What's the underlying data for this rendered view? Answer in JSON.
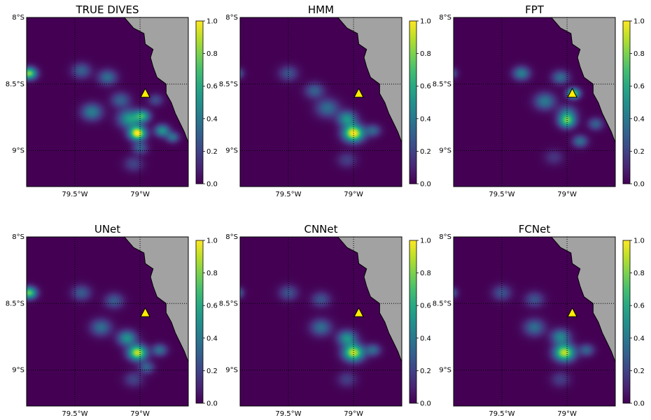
{
  "figure": {
    "panels": [
      {
        "title": "TRUE DIVES",
        "hotspots": [
          [
            -79.37,
            8.71,
            0.42,
            0.055
          ],
          [
            -79.08,
            8.76,
            0.55,
            0.06
          ],
          [
            -79.02,
            8.87,
            1.0,
            0.045
          ],
          [
            -78.98,
            8.74,
            0.55,
            0.04
          ],
          [
            -78.83,
            8.85,
            0.5,
            0.04
          ],
          [
            -78.75,
            8.9,
            0.35,
            0.035
          ],
          [
            -79.0,
            8.98,
            0.3,
            0.04
          ],
          [
            -79.85,
            8.42,
            0.8,
            0.04
          ],
          [
            -79.45,
            8.4,
            0.3,
            0.05
          ],
          [
            -79.25,
            8.45,
            0.35,
            0.05
          ],
          [
            -79.15,
            8.62,
            0.3,
            0.05
          ],
          [
            -78.88,
            8.62,
            0.22,
            0.04
          ],
          [
            -79.05,
            9.1,
            0.2,
            0.05
          ]
        ]
      },
      {
        "title": "HMM",
        "hotspots": [
          [
            -79.0,
            8.87,
            1.0,
            0.055
          ],
          [
            -79.05,
            8.76,
            0.5,
            0.05
          ],
          [
            -79.2,
            8.68,
            0.35,
            0.06
          ],
          [
            -79.3,
            8.55,
            0.3,
            0.05
          ],
          [
            -78.85,
            8.85,
            0.3,
            0.04
          ],
          [
            -79.9,
            8.42,
            0.4,
            0.035
          ],
          [
            -79.5,
            8.42,
            0.25,
            0.05
          ],
          [
            -79.05,
            9.07,
            0.18,
            0.05
          ]
        ]
      },
      {
        "title": "FPT",
        "hotspots": [
          [
            -79.0,
            8.78,
            0.65,
            0.045
          ],
          [
            -79.17,
            8.63,
            0.4,
            0.055
          ],
          [
            -79.35,
            8.42,
            0.42,
            0.045
          ],
          [
            -79.05,
            8.45,
            0.35,
            0.045
          ],
          [
            -78.95,
            8.57,
            0.7,
            0.035
          ],
          [
            -78.9,
            8.93,
            0.35,
            0.04
          ],
          [
            -79.0,
            8.72,
            0.35,
            0.05
          ],
          [
            -78.78,
            8.8,
            0.3,
            0.04
          ],
          [
            -79.9,
            8.42,
            0.4,
            0.035
          ],
          [
            -79.1,
            9.05,
            0.15,
            0.05
          ]
        ]
      },
      {
        "title": "UNet",
        "hotspots": [
          [
            -79.02,
            8.87,
            0.9,
            0.05
          ],
          [
            -79.1,
            8.76,
            0.5,
            0.05
          ],
          [
            -79.3,
            8.68,
            0.35,
            0.055
          ],
          [
            -78.85,
            8.85,
            0.35,
            0.04
          ],
          [
            -79.85,
            8.42,
            0.75,
            0.04
          ],
          [
            -79.45,
            8.42,
            0.28,
            0.05
          ],
          [
            -79.2,
            8.48,
            0.28,
            0.05
          ],
          [
            -79.05,
            9.07,
            0.2,
            0.05
          ],
          [
            -78.95,
            8.98,
            0.3,
            0.04
          ]
        ]
      },
      {
        "title": "CNNet",
        "hotspots": [
          [
            -79.0,
            8.87,
            0.9,
            0.055
          ],
          [
            -79.05,
            8.76,
            0.5,
            0.05
          ],
          [
            -79.25,
            8.68,
            0.35,
            0.055
          ],
          [
            -78.85,
            8.85,
            0.32,
            0.04
          ],
          [
            -79.9,
            8.42,
            0.45,
            0.035
          ],
          [
            -79.5,
            8.42,
            0.25,
            0.05
          ],
          [
            -79.25,
            8.47,
            0.25,
            0.05
          ],
          [
            -79.05,
            9.07,
            0.18,
            0.05
          ]
        ]
      },
      {
        "title": "FCNet",
        "hotspots": [
          [
            -79.02,
            8.87,
            0.9,
            0.055
          ],
          [
            -79.05,
            8.75,
            0.45,
            0.05
          ],
          [
            -79.25,
            8.68,
            0.35,
            0.055
          ],
          [
            -78.85,
            8.85,
            0.3,
            0.04
          ],
          [
            -79.9,
            8.42,
            0.45,
            0.035
          ],
          [
            -79.5,
            8.42,
            0.25,
            0.05
          ],
          [
            -79.25,
            8.47,
            0.25,
            0.05
          ],
          [
            -79.05,
            9.07,
            0.18,
            0.05
          ]
        ]
      }
    ],
    "map": {
      "lon_range": [
        -79.87,
        -78.63
      ],
      "lat_range": [
        8.0,
        9.27
      ],
      "gridlines": {
        "lon": [
          -79.5,
          -79.0
        ],
        "lat": [
          8.0,
          8.5,
          9.0
        ]
      },
      "lat_tick_labels": [
        "8°S",
        "8.5°S",
        "9°S"
      ],
      "lat_tick_values": [
        8.0,
        8.5,
        9.0
      ],
      "lon_tick_labels": [
        "79.5°W",
        "79°W"
      ],
      "lon_tick_values": [
        -79.5,
        -79.0
      ],
      "coastline": [
        [
          -79.12,
          8.0
        ],
        [
          -79.05,
          8.08
        ],
        [
          -78.97,
          8.12
        ],
        [
          -78.96,
          8.2
        ],
        [
          -78.9,
          8.24
        ],
        [
          -78.92,
          8.3
        ],
        [
          -78.9,
          8.37
        ],
        [
          -78.87,
          8.45
        ],
        [
          -78.8,
          8.5
        ],
        [
          -78.8,
          8.57
        ],
        [
          -78.76,
          8.64
        ],
        [
          -78.73,
          8.72
        ],
        [
          -78.69,
          8.8
        ],
        [
          -78.66,
          8.86
        ],
        [
          -78.63,
          8.94
        ]
      ],
      "land_color": "#a2a2a2",
      "colormap": "viridis",
      "marker": {
        "lon": -78.96,
        "lat": 8.57,
        "symbol": "triangle",
        "fill": "#ffee00",
        "edge": "#000000"
      }
    },
    "colorbar": {
      "min": 0.0,
      "max": 1.0,
      "tick_values": [
        0.0,
        0.2,
        0.4,
        0.6,
        0.8,
        1.0
      ],
      "tick_labels": [
        "0.0",
        "0.2",
        "0.4",
        "0.6",
        "0.8",
        "1.0"
      ]
    }
  }
}
